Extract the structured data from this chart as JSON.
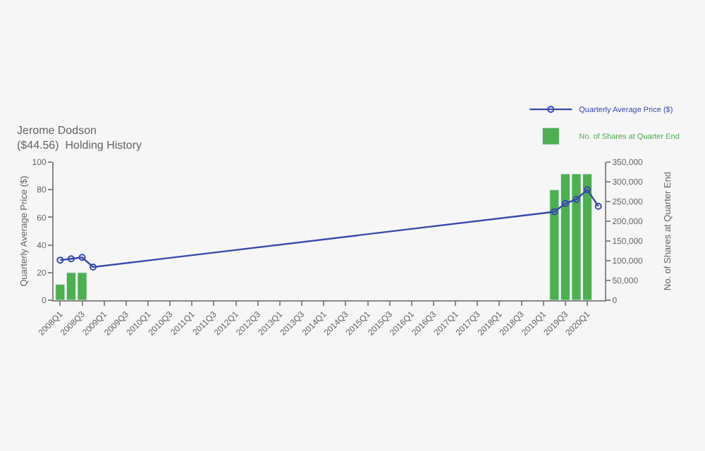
{
  "chart_data": {
    "type": "bar",
    "title": "Jerome Dodson",
    "subtitle": "($44.56)  Holding History",
    "ylabel": "Quarterly Average Price ($)",
    "y2label": "No. of Shares at Quarter End",
    "categories": [
      "2008Q1",
      null,
      "2008Q3",
      null,
      "2009Q1",
      null,
      "2009Q3",
      null,
      "2010Q1",
      null,
      "2010Q3",
      null,
      "2011Q1",
      null,
      "2011Q3",
      null,
      "2012Q1",
      null,
      "2012Q3",
      null,
      "2013Q1",
      null,
      "2013Q3",
      null,
      "2014Q1",
      null,
      "2014Q3",
      null,
      "2015Q1",
      null,
      "2015Q3",
      null,
      "2016Q1",
      null,
      "2016Q3",
      null,
      "2017Q1",
      null,
      "2017Q3",
      null,
      "2018Q1",
      null,
      "2018Q3",
      null,
      "2019Q1",
      null,
      "2019Q3",
      null,
      "2020Q1",
      null
    ],
    "series": [
      {
        "name": "Quarterly Average Price ($)",
        "type": "line",
        "color": "#3949ab",
        "marker": "circle",
        "values": [
          29,
          30,
          31,
          24,
          null,
          null,
          null,
          null,
          null,
          null,
          null,
          null,
          null,
          null,
          null,
          null,
          null,
          null,
          null,
          null,
          null,
          null,
          null,
          null,
          null,
          null,
          null,
          null,
          null,
          null,
          null,
          null,
          null,
          null,
          null,
          null,
          null,
          null,
          null,
          null,
          null,
          null,
          null,
          null,
          null,
          64,
          70,
          73,
          80,
          68
        ]
      },
      {
        "name": "No. of Shares at Quarter End",
        "axis": "y2",
        "color": "#4caf50",
        "values": [
          40000,
          70000,
          70000,
          null,
          null,
          null,
          null,
          null,
          null,
          null,
          null,
          null,
          null,
          null,
          null,
          null,
          null,
          null,
          null,
          null,
          null,
          null,
          null,
          null,
          null,
          null,
          null,
          null,
          null,
          null,
          null,
          null,
          null,
          null,
          null,
          null,
          null,
          null,
          null,
          null,
          null,
          null,
          null,
          null,
          null,
          280000,
          320000,
          320000,
          320000,
          null
        ]
      }
    ],
    "ylim": [
      0,
      100
    ],
    "yticks": [
      0,
      20,
      40,
      60,
      80,
      100
    ],
    "y2lim": [
      0,
      350000
    ],
    "y2ticks": [
      {
        "value": 0,
        "label": "0"
      },
      {
        "value": 50000,
        "label": "50,000"
      },
      {
        "value": 100000,
        "label": "100,000"
      },
      {
        "value": 150000,
        "label": "150,000"
      },
      {
        "value": 200000,
        "label": "200,000"
      },
      {
        "value": 250000,
        "label": "250,000"
      },
      {
        "value": 300000,
        "label": "300,000"
      },
      {
        "value": 350000,
        "label": "350,000"
      }
    ],
    "grid": false,
    "legend": "top right"
  }
}
